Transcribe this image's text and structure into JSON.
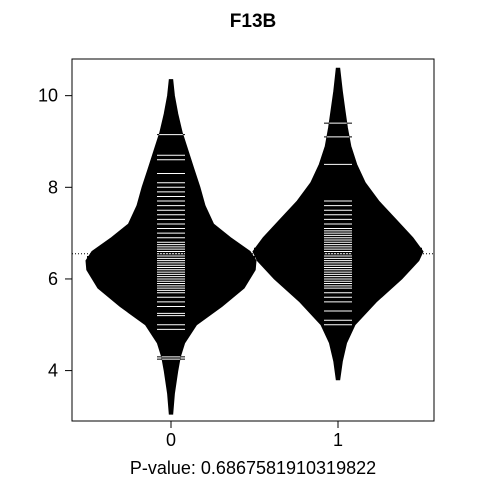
{
  "chart_data": {
    "type": "beanplot",
    "title": "F13B",
    "xlabel": "P-value: 0.6867581910319822",
    "ylabel": "",
    "categories": [
      "0",
      "1"
    ],
    "y_ticks": [
      4,
      6,
      8,
      10
    ],
    "ylim": [
      2.9,
      10.8
    ],
    "overall_mean": 6.55,
    "grid": false,
    "beans": [
      {
        "name": "0",
        "group_mean": 6.48,
        "density": [
          [
            3.05,
            0.02
          ],
          [
            3.5,
            0.04
          ],
          [
            4.0,
            0.08
          ],
          [
            4.3,
            0.11
          ],
          [
            4.6,
            0.16
          ],
          [
            5.0,
            0.3
          ],
          [
            5.4,
            0.6
          ],
          [
            5.8,
            0.86
          ],
          [
            6.2,
            0.99
          ],
          [
            6.4,
            1.0
          ],
          [
            6.6,
            0.93
          ],
          [
            6.9,
            0.7
          ],
          [
            7.2,
            0.5
          ],
          [
            7.6,
            0.4
          ],
          [
            8.0,
            0.34
          ],
          [
            8.4,
            0.27
          ],
          [
            8.8,
            0.2
          ],
          [
            9.2,
            0.13
          ],
          [
            9.6,
            0.08
          ],
          [
            10.0,
            0.04
          ],
          [
            10.35,
            0.02
          ]
        ],
        "observations": [
          4.25,
          4.3,
          4.9,
          5.0,
          5.2,
          5.25,
          5.4,
          5.5,
          5.6,
          5.7,
          5.75,
          5.8,
          5.85,
          5.9,
          5.95,
          6.0,
          6.05,
          6.1,
          6.15,
          6.2,
          6.25,
          6.3,
          6.35,
          6.4,
          6.45,
          6.5,
          6.55,
          6.6,
          6.65,
          6.7,
          6.75,
          6.8,
          6.9,
          7.0,
          7.1,
          7.2,
          7.3,
          7.4,
          7.5,
          7.6,
          7.7,
          7.8,
          7.9,
          8.0,
          8.1,
          8.3,
          8.6,
          8.7,
          9.15
        ]
      },
      {
        "name": "1",
        "group_mean": 6.66,
        "density": [
          [
            3.8,
            0.02
          ],
          [
            4.2,
            0.05
          ],
          [
            4.6,
            0.1
          ],
          [
            5.0,
            0.2
          ],
          [
            5.5,
            0.45
          ],
          [
            6.0,
            0.75
          ],
          [
            6.4,
            0.95
          ],
          [
            6.6,
            1.0
          ],
          [
            6.9,
            0.88
          ],
          [
            7.3,
            0.68
          ],
          [
            7.7,
            0.48
          ],
          [
            8.1,
            0.32
          ],
          [
            8.5,
            0.22
          ],
          [
            8.9,
            0.15
          ],
          [
            9.3,
            0.11
          ],
          [
            9.7,
            0.08
          ],
          [
            10.1,
            0.05
          ],
          [
            10.6,
            0.02
          ]
        ],
        "observations": [
          5.0,
          5.1,
          5.3,
          5.5,
          5.6,
          5.7,
          5.8,
          5.85,
          5.9,
          5.95,
          6.0,
          6.05,
          6.1,
          6.15,
          6.2,
          6.25,
          6.3,
          6.35,
          6.4,
          6.45,
          6.5,
          6.55,
          6.6,
          6.65,
          6.7,
          6.75,
          6.8,
          6.85,
          6.9,
          6.95,
          7.0,
          7.05,
          7.1,
          7.2,
          7.3,
          7.4,
          7.5,
          7.6,
          7.7,
          8.5,
          9.1,
          9.4
        ]
      }
    ]
  }
}
